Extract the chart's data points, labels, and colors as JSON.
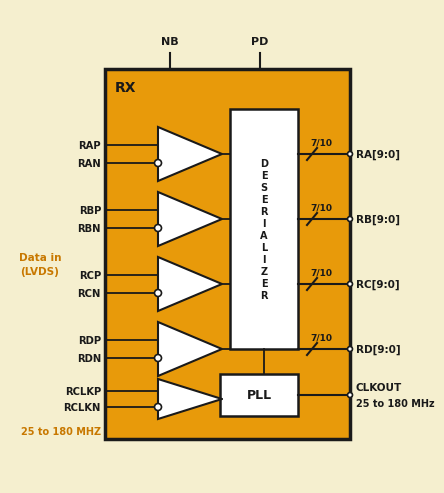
{
  "bg_color": "#f5efcf",
  "orange_color": "#e89a0a",
  "black_color": "#1a1a1a",
  "white_color": "#ffffff",
  "text_color_orange": "#c87800",
  "title_text": "RX",
  "nb_label": "NB",
  "pd_label": "PD",
  "left_labels_top": [
    "RAP",
    "RAN",
    "RBP",
    "RBN",
    "RCP",
    "RCN",
    "RDP",
    "RDN"
  ],
  "left_labels_bottom": [
    "RCLKP",
    "RCLKN"
  ],
  "right_labels": [
    "RA[9:0]",
    "RB[9:0]",
    "RC[9:0]",
    "RD[9:0]"
  ],
  "right_clk_line1": "CLKOUT",
  "right_clk_line2": "25 to 180 MHz",
  "bus_labels": [
    "7/10",
    "7/10",
    "7/10",
    "7/10"
  ],
  "data_in_label": "Data in\n(LVDS)",
  "freq_label": "25 to 180 MHZ",
  "deserializer_label": "D\nE\nS\nE\nR\nI\nA\nL\nI\nZ\nE\nR",
  "pll_label": "PLL"
}
